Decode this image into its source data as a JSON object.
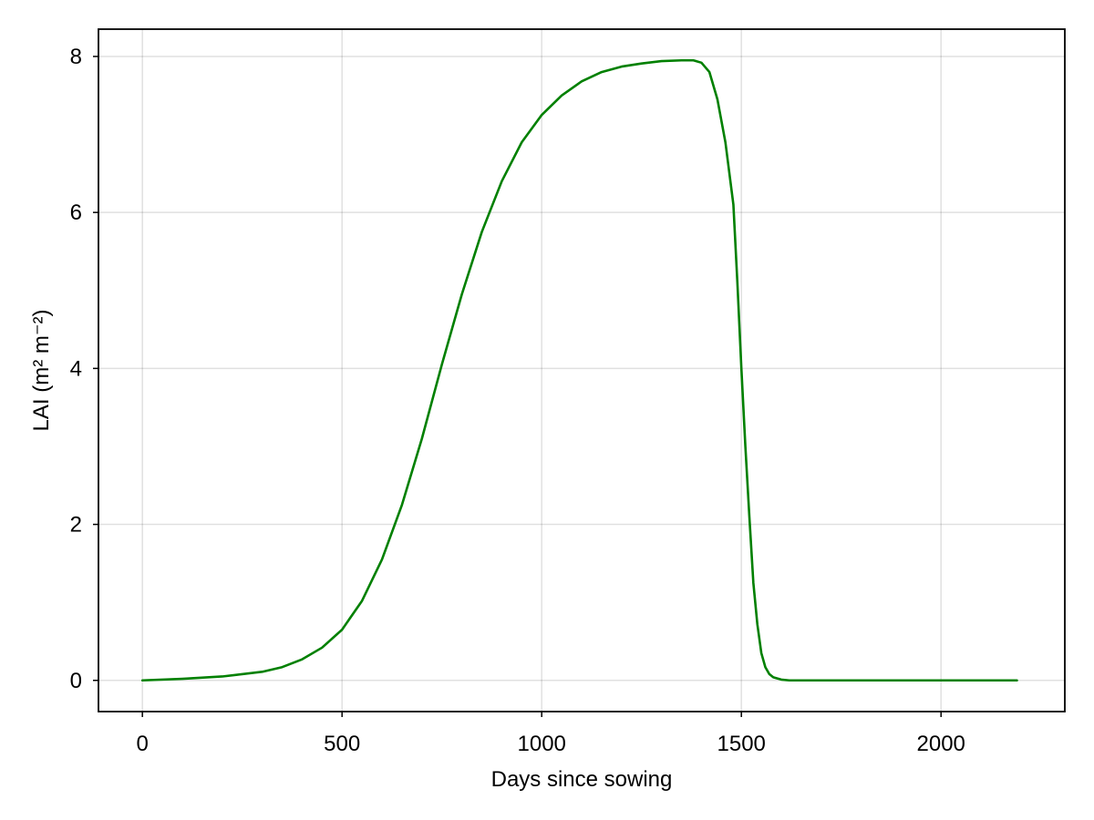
{
  "chart_data": {
    "type": "line",
    "title": "",
    "xlabel": "Days since sowing",
    "ylabel": "LAI (m² m⁻²)",
    "xlim": [
      -110,
      2310
    ],
    "ylim": [
      -0.4,
      8.35
    ],
    "xticks": [
      0,
      500,
      1000,
      1500,
      2000
    ],
    "xtick_labels": [
      "0",
      "500",
      "1000",
      "1500",
      "2000"
    ],
    "yticks": [
      0,
      2,
      4,
      6,
      8
    ],
    "ytick_labels": [
      "0",
      "2",
      "4",
      "6",
      "8"
    ],
    "grid": true,
    "series": [
      {
        "name": "LAI",
        "color": "#008000",
        "x": [
          0,
          100,
          200,
          300,
          350,
          400,
          450,
          500,
          550,
          600,
          650,
          700,
          750,
          800,
          850,
          900,
          950,
          1000,
          1050,
          1100,
          1150,
          1200,
          1250,
          1300,
          1350,
          1380,
          1400,
          1420,
          1440,
          1460,
          1480,
          1490,
          1500,
          1510,
          1520,
          1530,
          1540,
          1550,
          1560,
          1570,
          1580,
          1600,
          1620,
          1650,
          1700,
          1800,
          1900,
          2000,
          2100,
          2190
        ],
        "y": [
          0.0,
          0.02,
          0.05,
          0.11,
          0.17,
          0.27,
          0.42,
          0.65,
          1.02,
          1.55,
          2.25,
          3.1,
          4.05,
          4.95,
          5.75,
          6.4,
          6.9,
          7.25,
          7.5,
          7.68,
          7.8,
          7.87,
          7.91,
          7.94,
          7.95,
          7.95,
          7.92,
          7.8,
          7.45,
          6.9,
          6.1,
          5.1,
          4.0,
          3.0,
          2.1,
          1.25,
          0.72,
          0.35,
          0.17,
          0.08,
          0.04,
          0.01,
          0.0,
          0.0,
          0.0,
          0.0,
          0.0,
          0.0,
          0.0,
          0.0
        ]
      }
    ]
  }
}
